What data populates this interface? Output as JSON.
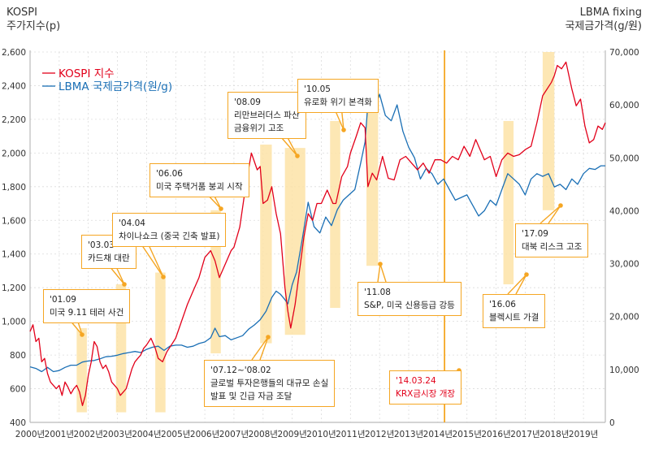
{
  "chart_data": {
    "type": "line",
    "title": "",
    "left_axis": {
      "title_line1": "KOSPI",
      "title_line2": "주가지수(p)",
      "ylim": [
        400,
        2600
      ],
      "ticks": [
        400,
        600,
        800,
        1000,
        1200,
        1400,
        1600,
        1800,
        2000,
        2200,
        2400,
        2600
      ],
      "tick_labels": [
        "400",
        "600",
        "800",
        "1,000",
        "1,200",
        "1,400",
        "1,600",
        "1,800",
        "2,000",
        "2,200",
        "2,400",
        "2,600"
      ]
    },
    "right_axis": {
      "title_line1": "LBMA fixing",
      "title_line2": "국제금가격(g/원)",
      "ylim": [
        0,
        70000
      ],
      "ticks": [
        0,
        10000,
        20000,
        30000,
        40000,
        50000,
        60000,
        70000
      ],
      "tick_labels": [
        "0",
        "10,000",
        "20,000",
        "30,000",
        "40,000",
        "50,000",
        "60,000",
        "70,000"
      ]
    },
    "x_axis": {
      "xlim": [
        2000,
        2019.75
      ],
      "ticks": [
        2000,
        2001,
        2002,
        2003,
        2004,
        2005,
        2006,
        2007,
        2008,
        2009,
        2010,
        2011,
        2012,
        2013,
        2014,
        2015,
        2016,
        2017,
        2018,
        2019
      ],
      "tick_labels": [
        "2000년",
        "2001년",
        "2002년",
        "2003년",
        "2004년",
        "2005년",
        "2006년",
        "2007년",
        "2008년",
        "2009년",
        "2010년",
        "2011년",
        "2012년",
        "2013년",
        "2014년",
        "2015년",
        "2016년",
        "2017년",
        "2018년",
        "2019년"
      ]
    },
    "grid": true,
    "legend": {
      "placement": "top-left",
      "items": [
        {
          "label": "KOSPI 지수",
          "color": "#e2001a"
        },
        {
          "label": "LBMA 국제금가격(원/g)",
          "color": "#1a6fb5"
        }
      ]
    },
    "series": [
      {
        "name": "KOSPI 지수",
        "axis": "left",
        "color": "#e2001a",
        "x": [
          2000.0,
          2000.1,
          2000.2,
          2000.3,
          2000.4,
          2000.5,
          2000.6,
          2000.7,
          2000.8,
          2000.9,
          2001.0,
          2001.1,
          2001.2,
          2001.3,
          2001.4,
          2001.5,
          2001.6,
          2001.7,
          2001.8,
          2001.9,
          2002.0,
          2002.1,
          2002.2,
          2002.3,
          2002.4,
          2002.5,
          2002.6,
          2002.7,
          2002.8,
          2002.9,
          2003.0,
          2003.1,
          2003.2,
          2003.3,
          2003.4,
          2003.5,
          2003.6,
          2003.7,
          2003.8,
          2003.9,
          2004.0,
          2004.15,
          2004.3,
          2004.4,
          2004.55,
          2004.7,
          2004.85,
          2005.0,
          2005.2,
          2005.4,
          2005.6,
          2005.8,
          2006.0,
          2006.2,
          2006.35,
          2006.5,
          2006.7,
          2006.9,
          2007.0,
          2007.2,
          2007.4,
          2007.6,
          2007.8,
          2007.9,
          2008.0,
          2008.15,
          2008.3,
          2008.45,
          2008.6,
          2008.75,
          2008.85,
          2008.95,
          2009.1,
          2009.25,
          2009.4,
          2009.55,
          2009.7,
          2009.85,
          2010.0,
          2010.2,
          2010.4,
          2010.5,
          2010.7,
          2010.9,
          2011.0,
          2011.2,
          2011.35,
          2011.5,
          2011.6,
          2011.75,
          2011.9,
          2012.1,
          2012.3,
          2012.5,
          2012.7,
          2012.9,
          2013.1,
          2013.3,
          2013.5,
          2013.7,
          2013.9,
          2014.1,
          2014.3,
          2014.5,
          2014.7,
          2014.9,
          2015.1,
          2015.3,
          2015.4,
          2015.6,
          2015.8,
          2016.0,
          2016.2,
          2016.4,
          2016.6,
          2016.8,
          2017.0,
          2017.2,
          2017.4,
          2017.6,
          2017.75,
          2017.9,
          2018.0,
          2018.1,
          2018.25,
          2018.4,
          2018.6,
          2018.75,
          2018.9,
          2019.05,
          2019.2,
          2019.35,
          2019.5,
          2019.65,
          2019.75
        ],
        "values": [
          940,
          980,
          880,
          900,
          760,
          780,
          690,
          640,
          620,
          600,
          620,
          560,
          640,
          610,
          570,
          600,
          620,
          580,
          500,
          560,
          680,
          760,
          880,
          850,
          760,
          720,
          740,
          700,
          640,
          620,
          600,
          560,
          580,
          600,
          660,
          720,
          760,
          780,
          800,
          840,
          860,
          900,
          840,
          780,
          760,
          820,
          860,
          900,
          1000,
          1100,
          1180,
          1260,
          1380,
          1420,
          1360,
          1260,
          1340,
          1420,
          1440,
          1560,
          1800,
          2000,
          1900,
          1920,
          1700,
          1720,
          1800,
          1640,
          1520,
          1200,
          1060,
          960,
          1100,
          1300,
          1500,
          1640,
          1600,
          1700,
          1700,
          1780,
          1700,
          1700,
          1860,
          1920,
          2000,
          2100,
          2180,
          2150,
          1800,
          1880,
          1840,
          1980,
          1850,
          1840,
          1960,
          1980,
          1940,
          1900,
          1940,
          1880,
          1960,
          1960,
          1940,
          1980,
          1960,
          2040,
          1980,
          2080,
          2040,
          1960,
          1980,
          1860,
          1960,
          2000,
          1980,
          1990,
          2020,
          2040,
          2180,
          2340,
          2380,
          2420,
          2460,
          2520,
          2500,
          2540,
          2380,
          2280,
          2320,
          2160,
          2060,
          2080,
          2160,
          2140,
          2180
        ]
      },
      {
        "name": "LBMA 국제금가격(원/g)",
        "axis": "right",
        "color": "#1a6fb5",
        "x": [
          2000.0,
          2000.2,
          2000.4,
          2000.6,
          2000.8,
          2001.0,
          2001.2,
          2001.4,
          2001.6,
          2001.8,
          2002.0,
          2002.2,
          2002.4,
          2002.6,
          2002.8,
          2003.0,
          2003.2,
          2003.4,
          2003.6,
          2003.8,
          2004.0,
          2004.2,
          2004.4,
          2004.6,
          2004.8,
          2005.0,
          2005.2,
          2005.4,
          2005.6,
          2005.8,
          2006.0,
          2006.2,
          2006.35,
          2006.5,
          2006.7,
          2006.9,
          2007.1,
          2007.3,
          2007.5,
          2007.7,
          2007.9,
          2008.1,
          2008.3,
          2008.45,
          2008.6,
          2008.75,
          2008.85,
          2009.0,
          2009.15,
          2009.35,
          2009.55,
          2009.75,
          2009.95,
          2010.15,
          2010.35,
          2010.55,
          2010.75,
          2010.95,
          2011.15,
          2011.35,
          2011.5,
          2011.65,
          2011.8,
          2012.0,
          2012.2,
          2012.4,
          2012.6,
          2012.8,
          2013.0,
          2013.2,
          2013.4,
          2013.6,
          2013.8,
          2014.0,
          2014.2,
          2014.4,
          2014.6,
          2014.8,
          2015.0,
          2015.2,
          2015.4,
          2015.6,
          2015.8,
          2016.0,
          2016.2,
          2016.4,
          2016.6,
          2016.8,
          2017.0,
          2017.2,
          2017.4,
          2017.6,
          2017.8,
          2018.0,
          2018.2,
          2018.4,
          2018.6,
          2018.8,
          2019.0,
          2019.2,
          2019.4,
          2019.6,
          2019.75
        ],
        "values": [
          10500,
          10200,
          9600,
          10400,
          9600,
          9800,
          10400,
          10800,
          10800,
          11400,
          11600,
          11700,
          12000,
          12400,
          12500,
          12700,
          13000,
          13200,
          13400,
          13200,
          13800,
          14200,
          14400,
          13600,
          14400,
          14600,
          14600,
          14200,
          14400,
          14900,
          15200,
          16000,
          17800,
          16200,
          16400,
          15600,
          16000,
          16400,
          17600,
          18400,
          19400,
          21000,
          23600,
          24800,
          24200,
          23200,
          22400,
          26000,
          28400,
          34800,
          41600,
          37000,
          35800,
          38800,
          37200,
          40200,
          42000,
          43000,
          44000,
          49000,
          53000,
          64000,
          59000,
          62000,
          58000,
          57000,
          60000,
          55000,
          52000,
          50000,
          46000,
          48000,
          47000,
          45000,
          46000,
          44000,
          42000,
          42500,
          43000,
          41000,
          39000,
          40000,
          42000,
          41000,
          44000,
          47000,
          46000,
          45000,
          43000,
          46000,
          47000,
          46500,
          47000,
          44500,
          45000,
          44000,
          46000,
          45000,
          47000,
          48000,
          47800,
          48500,
          48500
        ]
      }
    ],
    "shaded_periods": [
      {
        "start": 2001.6,
        "end": 2001.95,
        "lo": 460,
        "hi": 960
      },
      {
        "start": 2002.95,
        "end": 2003.3,
        "lo": 460,
        "hi": 1220
      },
      {
        "start": 2004.3,
        "end": 2004.65,
        "lo": 460,
        "hi": 1290
      },
      {
        "start": 2006.2,
        "end": 2006.55,
        "lo": 810,
        "hi": 1660
      },
      {
        "start": 2007.9,
        "end": 2008.3,
        "lo": 870,
        "hi": 2050
      },
      {
        "start": 2008.75,
        "end": 2009.45,
        "lo": 920,
        "hi": 2030
      },
      {
        "start": 2010.3,
        "end": 2010.65,
        "lo": 1080,
        "hi": 2190
      },
      {
        "start": 2011.55,
        "end": 2011.95,
        "lo": 1330,
        "hi": 2280
      },
      {
        "start": 2016.25,
        "end": 2016.6,
        "lo": 1220,
        "hi": 2190
      },
      {
        "start": 2017.6,
        "end": 2018.0,
        "lo": 1660,
        "hi": 2600
      }
    ],
    "event_line": {
      "x": 2014.23,
      "color": "#f5a623"
    },
    "annotations": [
      {
        "date": "'01.09",
        "text": "미국 9.11 테러 사건"
      },
      {
        "date": "'03.03",
        "text": "카드채 대란"
      },
      {
        "date": "'04.04",
        "text": "차이나쇼크 (중국 긴축 발표)"
      },
      {
        "date": "'06.06",
        "text": "미국 주택거품 붕괴 시작"
      },
      {
        "date": "'07.12~'08.02",
        "text": "글로벌 투자은행들의 대규모 손실",
        "text2": "발표 및 긴급 자금 조달"
      },
      {
        "date": "'08.09",
        "text": "리만브러더스 파산",
        "text2": "금융위기 고조"
      },
      {
        "date": "'10.05",
        "text": "유로화 위기 본격화"
      },
      {
        "date": "'11.08",
        "text": "S&P, 미국 신용등급 강등"
      },
      {
        "date": "'14.03.24",
        "text": "KRX금시장 개장"
      },
      {
        "date": "'16.06",
        "text": "블렉시트 가결"
      },
      {
        "date": "'17.09",
        "text": "대북 리스크 고조"
      }
    ]
  }
}
